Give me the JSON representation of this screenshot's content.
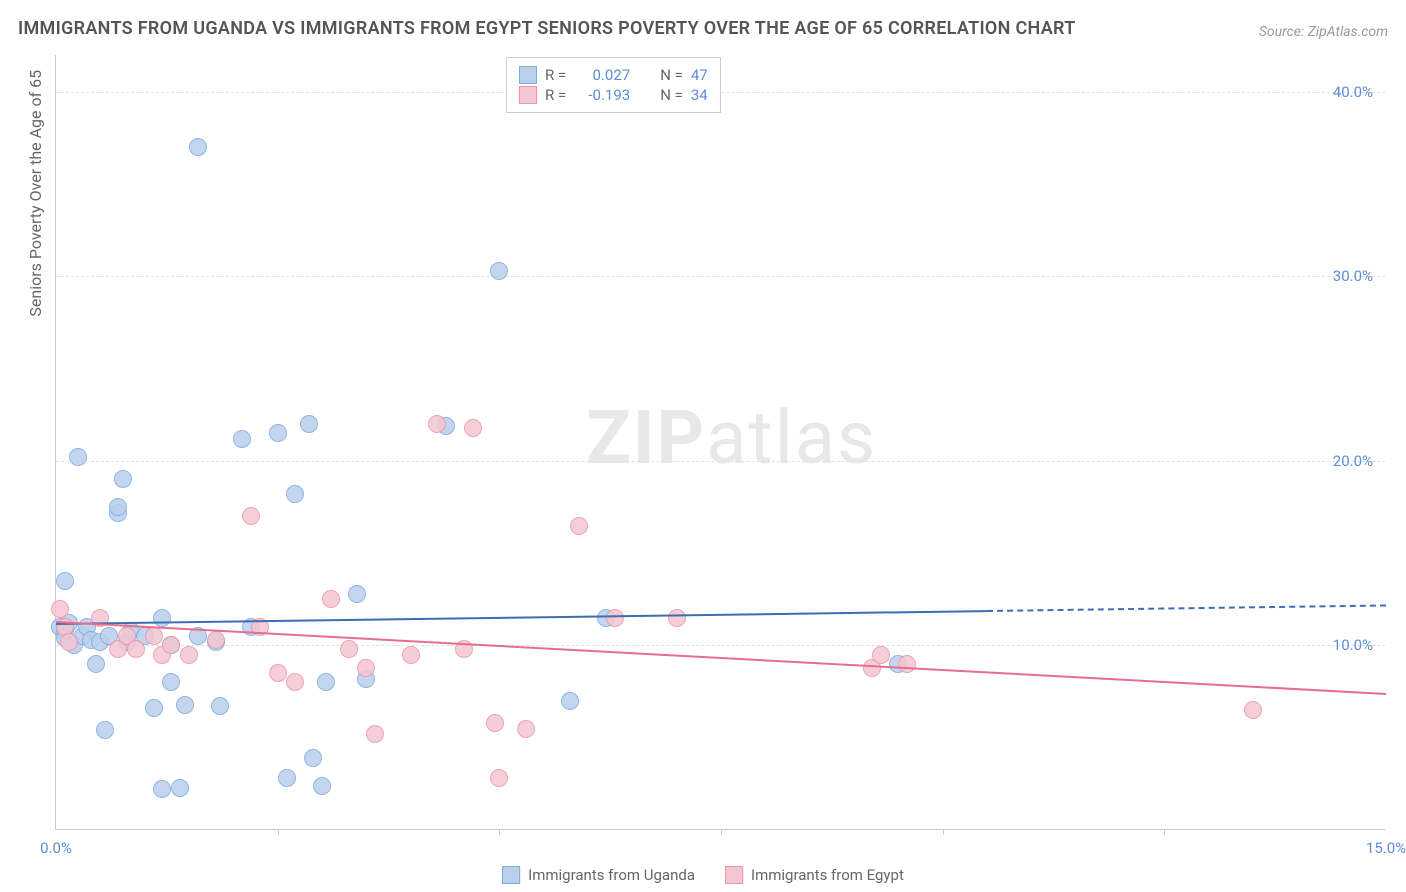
{
  "title": "IMMIGRANTS FROM UGANDA VS IMMIGRANTS FROM EGYPT SENIORS POVERTY OVER THE AGE OF 65 CORRELATION CHART",
  "source": "Source: ZipAtlas.com",
  "watermark": {
    "zip": "ZIP",
    "rest": "atlas"
  },
  "chart": {
    "type": "scatter",
    "xlim": [
      0,
      15
    ],
    "ylim": [
      0,
      42
    ],
    "xtick_labels": [
      "0.0%",
      "15.0%"
    ],
    "xtick_positions": [
      0,
      15
    ],
    "xtick_marks": [
      2.5,
      5.0,
      7.5,
      10.0,
      12.5
    ],
    "ytick_labels": [
      "10.0%",
      "20.0%",
      "30.0%",
      "40.0%"
    ],
    "ytick_positions": [
      10,
      20,
      30,
      40
    ],
    "ylabel": "Seniors Poverty Over the Age of 65",
    "background_color": "#ffffff",
    "grid_color": "#e0e0e0",
    "axis_label_color": "#5b8dd6",
    "point_radius": 9,
    "series": [
      {
        "name": "Immigrants from Uganda",
        "color_fill": "#b9d0ed",
        "color_stroke": "#7fa8db",
        "R": "0.027",
        "N": "47",
        "trend": {
          "y_at_x0": 11.2,
          "y_at_x15": 12.2,
          "solid_until_x": 10.5
        },
        "points": [
          [
            0.05,
            11.0
          ],
          [
            0.1,
            13.5
          ],
          [
            0.1,
            10.8
          ],
          [
            0.1,
            10.4
          ],
          [
            0.15,
            11.2
          ],
          [
            0.2,
            10.0
          ],
          [
            0.25,
            20.2
          ],
          [
            0.3,
            10.5
          ],
          [
            0.35,
            11.0
          ],
          [
            0.4,
            10.3
          ],
          [
            0.45,
            9.0
          ],
          [
            0.5,
            10.2
          ],
          [
            0.55,
            5.4
          ],
          [
            0.6,
            10.5
          ],
          [
            0.7,
            17.2
          ],
          [
            0.7,
            17.5
          ],
          [
            0.75,
            19.0
          ],
          [
            0.8,
            10.2
          ],
          [
            0.85,
            10.8
          ],
          [
            1.0,
            10.5
          ],
          [
            1.1,
            6.6
          ],
          [
            1.2,
            2.2
          ],
          [
            1.2,
            11.5
          ],
          [
            1.3,
            10.0
          ],
          [
            1.3,
            8.0
          ],
          [
            1.4,
            2.3
          ],
          [
            1.45,
            6.8
          ],
          [
            1.6,
            37.0
          ],
          [
            1.6,
            10.5
          ],
          [
            1.8,
            10.2
          ],
          [
            1.85,
            6.7
          ],
          [
            2.1,
            21.2
          ],
          [
            2.2,
            11.0
          ],
          [
            2.5,
            21.5
          ],
          [
            2.6,
            2.8
          ],
          [
            2.7,
            18.2
          ],
          [
            2.85,
            22.0
          ],
          [
            2.9,
            3.9
          ],
          [
            3.0,
            2.4
          ],
          [
            3.05,
            8.0
          ],
          [
            3.4,
            12.8
          ],
          [
            3.5,
            8.2
          ],
          [
            4.4,
            21.9
          ],
          [
            5.0,
            30.3
          ],
          [
            5.8,
            7.0
          ],
          [
            6.2,
            11.5
          ],
          [
            9.5,
            9.0
          ]
        ]
      },
      {
        "name": "Immigrants from Egypt",
        "color_fill": "#f4c6d1",
        "color_stroke": "#e896ab",
        "R": "-0.193",
        "N": "34",
        "trend": {
          "y_at_x0": 11.3,
          "y_at_x15": 7.4,
          "solid_until_x": 15
        },
        "points": [
          [
            0.05,
            12.0
          ],
          [
            0.1,
            11.0
          ],
          [
            0.15,
            10.2
          ],
          [
            0.5,
            11.5
          ],
          [
            0.7,
            9.8
          ],
          [
            0.8,
            10.5
          ],
          [
            0.9,
            9.8
          ],
          [
            1.1,
            10.5
          ],
          [
            1.2,
            9.5
          ],
          [
            1.3,
            10.0
          ],
          [
            1.5,
            9.5
          ],
          [
            1.8,
            10.3
          ],
          [
            2.2,
            17.0
          ],
          [
            2.3,
            11.0
          ],
          [
            2.5,
            8.5
          ],
          [
            2.7,
            8.0
          ],
          [
            3.1,
            12.5
          ],
          [
            3.3,
            9.8
          ],
          [
            3.5,
            8.8
          ],
          [
            3.6,
            5.2
          ],
          [
            4.0,
            9.5
          ],
          [
            4.3,
            22.0
          ],
          [
            4.6,
            9.8
          ],
          [
            4.7,
            21.8
          ],
          [
            4.95,
            5.8
          ],
          [
            5.0,
            2.8
          ],
          [
            5.3,
            5.5
          ],
          [
            5.9,
            16.5
          ],
          [
            6.3,
            11.5
          ],
          [
            7.0,
            11.5
          ],
          [
            9.2,
            8.8
          ],
          [
            9.3,
            9.5
          ],
          [
            9.6,
            9.0
          ],
          [
            13.5,
            6.5
          ]
        ]
      }
    ]
  },
  "legend_static": {
    "R_label": "R =",
    "N_label": "N ="
  }
}
